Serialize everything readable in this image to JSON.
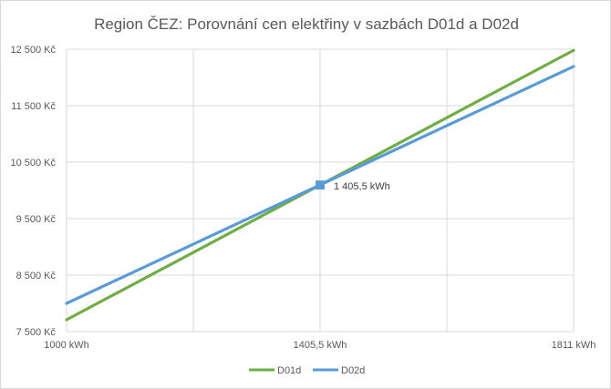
{
  "chart_data": {
    "type": "line",
    "title": "Region ČEZ: Porovnání cen elektřiny v sazbách D01d a D02d",
    "xlabel": "",
    "ylabel": "",
    "xlim": [
      1000,
      1811
    ],
    "ylim": [
      7500,
      12500
    ],
    "x_tick_labels": [
      {
        "value": 1000,
        "label": "1000 kWh"
      },
      {
        "value": 1405.5,
        "label": "1405,5 kWh"
      },
      {
        "value": 1811,
        "label": "1811 kWh"
      }
    ],
    "x_gridlines": [
      1000,
      1202.75,
      1405.5,
      1608.25,
      1811
    ],
    "y_ticks": [
      {
        "value": 7500,
        "label": "7 500 Kč"
      },
      {
        "value": 8500,
        "label": "8 500 Kč"
      },
      {
        "value": 9500,
        "label": "9 500 Kč"
      },
      {
        "value": 10500,
        "label": "10 500 Kč"
      },
      {
        "value": 11500,
        "label": "11 500 Kč"
      },
      {
        "value": 12500,
        "label": "12 500 Kč"
      }
    ],
    "grid": true,
    "legend_position": "bottom",
    "series": [
      {
        "name": "D01d",
        "color": "#70ad47",
        "x": [
          1000,
          1811
        ],
        "y": [
          7710,
          12480
        ]
      },
      {
        "name": "D02d",
        "color": "#5b9bd5",
        "x": [
          1000,
          1811
        ],
        "y": [
          8000,
          12195
        ]
      }
    ],
    "annotation": {
      "x": 1405.5,
      "y": 10095,
      "label": "1 405,5 kWh",
      "color": "#5b9bd5"
    }
  }
}
